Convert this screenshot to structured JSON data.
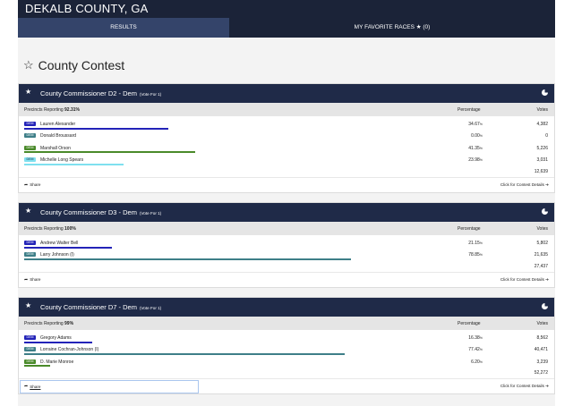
{
  "header": {
    "title": "DEKALB COUNTY, GA",
    "tabs": [
      {
        "label": "RESULTS"
      },
      {
        "label": "MY FAVORITE RACES ★ (0)"
      }
    ]
  },
  "page": {
    "title": "County Contest"
  },
  "colors": {
    "dem_blue": "#2323b8",
    "dem_teal": "#3e7f88",
    "dem_green": "#4a8a2a",
    "dem_cyan": "#7fe0ef",
    "header_dark": "#1b2338",
    "card_head": "#1f2a48"
  },
  "contests": [
    {
      "name": "County Commissioner D2 - Dem",
      "vote_for": "(Vote For 1)",
      "precincts_label": "Precincts Reporting",
      "precincts_value": "92.31%",
      "col_pct": "Percentage",
      "col_votes": "Votes",
      "candidates": [
        {
          "party": "DEM",
          "name": "Lauren Alexander",
          "pct": "34.67",
          "share": 0.3467,
          "votes": "4,382",
          "color": "#2323b8"
        },
        {
          "party": "DEM",
          "name": "Donald Broussard",
          "pct": "0.00",
          "share": 0.0,
          "votes": "0",
          "color": "#3e7f88"
        },
        {
          "party": "DEM",
          "name": "Marshall Orson",
          "pct": "41.35",
          "share": 0.4135,
          "votes": "5,226",
          "color": "#4a8a2a"
        },
        {
          "party": "DEM",
          "name": "Michelle Long Spears",
          "pct": "23.98",
          "share": 0.2398,
          "votes": "3,031",
          "color": "#7fe0ef"
        }
      ],
      "total": "12,639",
      "share_label": "Share",
      "details_label": "Click for Contest Details ➔"
    },
    {
      "name": "County Commissioner D3 - Dem",
      "vote_for": "(Vote For 1)",
      "precincts_label": "Precincts Reporting",
      "precincts_value": "100%",
      "col_pct": "Percentage",
      "col_votes": "Votes",
      "candidates": [
        {
          "party": "DEM",
          "name": "Andrew Walter Bell",
          "pct": "21.15",
          "share": 0.2115,
          "votes": "5,802",
          "color": "#2323b8"
        },
        {
          "party": "DEM",
          "name": "Larry Johnson (I)",
          "pct": "78.85",
          "share": 0.7885,
          "votes": "21,635",
          "color": "#3e7f88"
        }
      ],
      "total": "27,437",
      "share_label": "Share",
      "details_label": "Click for Contest Details ➔"
    },
    {
      "name": "County Commissioner D7 - Dem",
      "vote_for": "(Vote For 1)",
      "precincts_label": "Precincts Reporting",
      "precincts_value": "99%",
      "col_pct": "Percentage",
      "col_votes": "Votes",
      "candidates": [
        {
          "party": "DEM",
          "name": "Gregory Adams",
          "pct": "16.38",
          "share": 0.1638,
          "votes": "8,562",
          "color": "#2323b8"
        },
        {
          "party": "DEM",
          "name": "Lorraine Cochran-Johnson (I)",
          "pct": "77.42",
          "share": 0.7742,
          "votes": "40,471",
          "color": "#3e7f88"
        },
        {
          "party": "DEM",
          "name": "D. Marie Monroe",
          "pct": "6.20",
          "share": 0.062,
          "votes": "3,239",
          "color": "#4a8a2a"
        }
      ],
      "total": "52,272",
      "share_label": "Share",
      "details_label": "Click for Contest Details ➔"
    }
  ]
}
